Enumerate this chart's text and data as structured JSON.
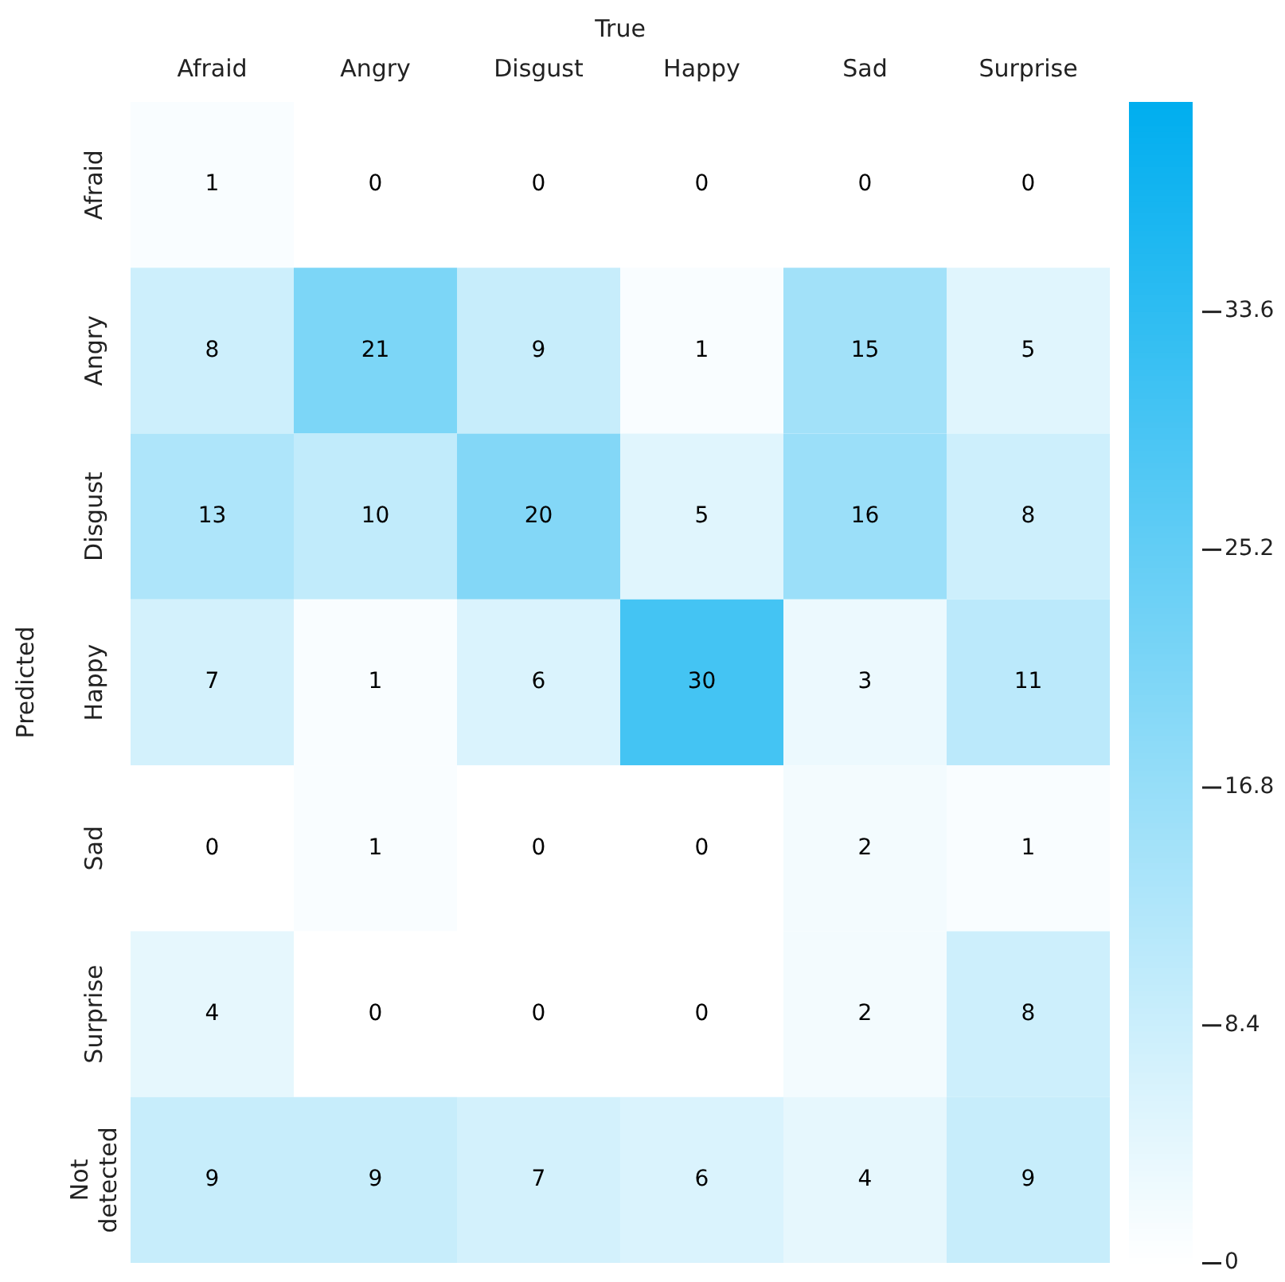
{
  "chart_data": {
    "type": "heatmap",
    "xlabel": "True",
    "ylabel": "Predicted",
    "categories": [
      "Afraid",
      "Angry",
      "Disgust",
      "Happy",
      "Sad",
      "Surprise"
    ],
    "y_categories": [
      "Afraid",
      "Angry",
      "Disgust",
      "Happy",
      "Sad",
      "Surprise",
      "Not\ndetected"
    ],
    "cells": [
      [
        1,
        0,
        0,
        0,
        0,
        0
      ],
      [
        8,
        21,
        9,
        1,
        15,
        5
      ],
      [
        13,
        10,
        20,
        5,
        16,
        8
      ],
      [
        7,
        1,
        6,
        30,
        3,
        11
      ],
      [
        0,
        1,
        0,
        0,
        2,
        1
      ],
      [
        4,
        0,
        0,
        0,
        2,
        8
      ],
      [
        9,
        9,
        7,
        6,
        4,
        9
      ]
    ],
    "data_labels": true,
    "clim": [
      0,
      41
    ],
    "cticks": [
      0,
      8.4,
      16.8,
      25.2,
      33.6
    ]
  }
}
